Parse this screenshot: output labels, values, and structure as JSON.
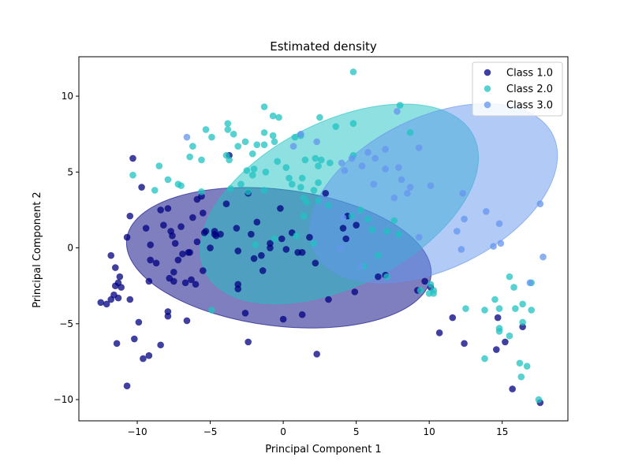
{
  "chart_data": {
    "type": "scatter",
    "title": "Estimated density",
    "xlabel": "Principal Component 1",
    "ylabel": "Principal Component 2",
    "xlim": [
      -14,
      19.5
    ],
    "ylim": [
      -11.4,
      12.6
    ],
    "x_ticks": [
      -10,
      -5,
      0,
      5,
      10,
      15
    ],
    "y_ticks": [
      -10,
      -5,
      0,
      5,
      10
    ],
    "x_tick_labels": [
      "−10",
      "−5",
      "0",
      "5",
      "10",
      "15"
    ],
    "y_tick_labels": [
      "−10",
      "−5",
      "0",
      "5",
      "10"
    ],
    "grid": false,
    "legend_position": "top-right",
    "series": [
      {
        "name": "Class 1.0",
        "color": "#000080",
        "ellipse": {
          "cx": -0.3,
          "cy": -0.65,
          "rx": 10.5,
          "ry": 4.5,
          "angle_deg": 7
        },
        "points": [
          [
            -10.3,
            5.9
          ],
          [
            -9.7,
            4.0
          ],
          [
            -10.5,
            2.1
          ],
          [
            -10.7,
            0.7
          ],
          [
            -11.8,
            -0.5
          ],
          [
            -11.5,
            -1.3
          ],
          [
            -11.2,
            -1.9
          ],
          [
            -11.3,
            -2.3
          ],
          [
            -11.5,
            -2.5
          ],
          [
            -11.1,
            -2.6
          ],
          [
            -11.6,
            -3.1
          ],
          [
            -11.8,
            -3.4
          ],
          [
            -11.3,
            -3.3
          ],
          [
            -12.1,
            -3.7
          ],
          [
            -12.5,
            -3.6
          ],
          [
            -10.5,
            -3.4
          ],
          [
            -11.4,
            -6.3
          ],
          [
            -10.2,
            -6.0
          ],
          [
            -9.9,
            -4.9
          ],
          [
            -10.7,
            -9.1
          ],
          [
            -9.6,
            -7.3
          ],
          [
            -9.2,
            -7.1
          ],
          [
            -8.4,
            -6.4
          ],
          [
            -9.4,
            1.3
          ],
          [
            -9.1,
            0.2
          ],
          [
            -9.1,
            -0.8
          ],
          [
            -9.2,
            -2.2
          ],
          [
            -8.4,
            2.5
          ],
          [
            -8.2,
            1.5
          ],
          [
            -7.9,
            2.6
          ],
          [
            -7.7,
            1.1
          ],
          [
            -7.6,
            0.8
          ],
          [
            -7.4,
            0.3
          ],
          [
            -7.2,
            -0.8
          ],
          [
            -7.8,
            -2.0
          ],
          [
            -7.5,
            -1.6
          ],
          [
            -7.5,
            -2.2
          ],
          [
            -8.7,
            -1.0
          ],
          [
            -7.9,
            -4.2
          ],
          [
            -7.9,
            -4.5
          ],
          [
            -7.0,
            1.4
          ],
          [
            -6.9,
            -0.4
          ],
          [
            -6.5,
            -0.3
          ],
          [
            -6.4,
            -0.3
          ],
          [
            -6.7,
            -2.3
          ],
          [
            -6.3,
            -2.1
          ],
          [
            -6.6,
            -4.8
          ],
          [
            -6.2,
            2.0
          ],
          [
            -5.9,
            3.2
          ],
          [
            -5.6,
            3.4
          ],
          [
            -5.5,
            2.3
          ],
          [
            -5.9,
            0.4
          ],
          [
            -5.3,
            1.1
          ],
          [
            -5.0,
            0.0
          ],
          [
            -5.5,
            -1.5
          ],
          [
            -6.0,
            -2.4
          ],
          [
            -5.4,
            1.0
          ],
          [
            -4.7,
            1.1
          ],
          [
            -4.6,
            0.8
          ],
          [
            -4.7,
            0.9
          ],
          [
            -4.3,
            0.9
          ],
          [
            -3.9,
            2.9
          ],
          [
            -3.2,
            1.3
          ],
          [
            -3.1,
            -0.2
          ],
          [
            -3.1,
            -2.4
          ],
          [
            -3.1,
            -2.7
          ],
          [
            -2.6,
            -4.3
          ],
          [
            -2.4,
            -6.2
          ],
          [
            -2.4,
            3.6
          ],
          [
            -2.2,
            0.9
          ],
          [
            -2.0,
            -0.7
          ],
          [
            -1.8,
            1.7
          ],
          [
            -1.5,
            -0.5
          ],
          [
            -1.4,
            -1.5
          ],
          [
            -0.9,
            0.0
          ],
          [
            -0.9,
            0.3
          ],
          [
            -0.2,
            2.6
          ],
          [
            -0.1,
            0.6
          ],
          [
            0.2,
            -0.1
          ],
          [
            -0.0,
            -4.7
          ],
          [
            0.6,
            1.0
          ],
          [
            1.0,
            -0.3
          ],
          [
            1.3,
            -0.3
          ],
          [
            1.3,
            -4.4
          ],
          [
            1.8,
            0.7
          ],
          [
            2.2,
            -1.0
          ],
          [
            2.3,
            -7.0
          ],
          [
            3.1,
            -3.4
          ],
          [
            4.1,
            1.3
          ],
          [
            4.3,
            0.6
          ],
          [
            4.4,
            2.1
          ],
          [
            5.0,
            1.5
          ],
          [
            4.9,
            -2.9
          ],
          [
            6.5,
            -1.9
          ],
          [
            7.0,
            -1.8
          ],
          [
            9.2,
            -2.8
          ],
          [
            9.7,
            -2.2
          ],
          [
            10.1,
            -2.6
          ],
          [
            10.7,
            -5.6
          ],
          [
            11.6,
            -4.6
          ],
          [
            12.4,
            -6.3
          ],
          [
            14.7,
            -4.6
          ],
          [
            14.6,
            -6.7
          ],
          [
            15.2,
            -6.2
          ],
          [
            15.7,
            -9.3
          ],
          [
            16.4,
            -5.2
          ],
          [
            17.6,
            -10.2
          ],
          [
            -3.7,
            6.1
          ],
          [
            2.9,
            3.6
          ]
        ]
      },
      {
        "name": "Class 2.0",
        "color": "#20c2c2",
        "ellipse": {
          "cx": 3.85,
          "cy": 2.9,
          "rx": 10.3,
          "ry": 5.4,
          "angle_deg": -27
        },
        "points": [
          [
            4.8,
            11.6
          ],
          [
            -1.3,
            9.3
          ],
          [
            -0.7,
            8.7
          ],
          [
            -0.3,
            8.6
          ],
          [
            2.5,
            8.6
          ],
          [
            4.8,
            8.2
          ],
          [
            8.0,
            9.4
          ],
          [
            -3.8,
            8.2
          ],
          [
            -3.8,
            7.8
          ],
          [
            -3.4,
            7.5
          ],
          [
            -5.3,
            7.8
          ],
          [
            -4.9,
            7.3
          ],
          [
            -1.3,
            7.6
          ],
          [
            -0.7,
            7.4
          ],
          [
            -0.6,
            7.0
          ],
          [
            0.8,
            7.3
          ],
          [
            1.2,
            7.4
          ],
          [
            3.6,
            8.0
          ],
          [
            -2.6,
            7.0
          ],
          [
            -3.1,
            6.7
          ],
          [
            -2.1,
            6.2
          ],
          [
            -1.8,
            6.8
          ],
          [
            -1.3,
            6.8
          ],
          [
            -6.2,
            6.7
          ],
          [
            -6.4,
            6.0
          ],
          [
            -5.6,
            5.8
          ],
          [
            -3.9,
            6.1
          ],
          [
            -3.7,
            5.8
          ],
          [
            -2.5,
            5.1
          ],
          [
            -2.0,
            5.2
          ],
          [
            -2.1,
            4.8
          ],
          [
            -1.2,
            5.0
          ],
          [
            -0.4,
            5.7
          ],
          [
            0.2,
            5.3
          ],
          [
            0.4,
            4.6
          ],
          [
            1.3,
            4.6
          ],
          [
            1.5,
            5.8
          ],
          [
            2.2,
            5.9
          ],
          [
            2.4,
            5.4
          ],
          [
            2.6,
            5.8
          ],
          [
            3.2,
            5.6
          ],
          [
            -8.5,
            5.4
          ],
          [
            -10.3,
            4.8
          ],
          [
            -7.9,
            4.5
          ],
          [
            -7.0,
            4.1
          ],
          [
            -7.2,
            4.2
          ],
          [
            -8.8,
            3.8
          ],
          [
            -5.6,
            3.7
          ],
          [
            -3.6,
            3.9
          ],
          [
            -2.9,
            4.2
          ],
          [
            -2.4,
            3.7
          ],
          [
            -1.3,
            3.8
          ],
          [
            0.6,
            4.2
          ],
          [
            1.2,
            4.0
          ],
          [
            1.4,
            3.3
          ],
          [
            1.6,
            3.0
          ],
          [
            2.1,
            3.8
          ],
          [
            2.4,
            4.3
          ],
          [
            2.4,
            3.1
          ],
          [
            3.1,
            2.8
          ],
          [
            4.7,
            2.1
          ],
          [
            5.3,
            2.5
          ],
          [
            5.8,
            1.9
          ],
          [
            6.1,
            1.2
          ],
          [
            7.1,
            1.1
          ],
          [
            7.6,
            1.8
          ],
          [
            7.9,
            0.9
          ],
          [
            6.5,
            -0.5
          ],
          [
            5.5,
            -1.2
          ],
          [
            7.1,
            -1.9
          ],
          [
            1.4,
            2.1
          ],
          [
            -0.6,
            0.6
          ],
          [
            0.9,
            0.8
          ],
          [
            2.1,
            0.3
          ],
          [
            -1.9,
            0.2
          ],
          [
            -4.9,
            -4.1
          ],
          [
            9.4,
            -2.8
          ],
          [
            10.3,
            -2.8
          ],
          [
            10.3,
            -3.0
          ],
          [
            10.1,
            -2.4
          ],
          [
            10.0,
            -3.0
          ],
          [
            12.5,
            -4.0
          ],
          [
            13.8,
            -4.1
          ],
          [
            14.5,
            -3.4
          ],
          [
            14.8,
            -4.0
          ],
          [
            14.8,
            -5.3
          ],
          [
            14.8,
            -5.5
          ],
          [
            15.5,
            -5.8
          ],
          [
            15.5,
            -1.9
          ],
          [
            15.8,
            -2.6
          ],
          [
            15.9,
            -4.0
          ],
          [
            16.4,
            -3.7
          ],
          [
            16.4,
            -4.9
          ],
          [
            16.2,
            -7.6
          ],
          [
            16.3,
            -8.5
          ],
          [
            16.7,
            -7.8
          ],
          [
            17.0,
            -4.1
          ],
          [
            17.5,
            -10.0
          ],
          [
            17.0,
            -2.3
          ],
          [
            13.8,
            -7.3
          ],
          [
            4.8,
            6.1
          ],
          [
            8.7,
            7.6
          ]
        ]
      },
      {
        "name": "Class 3.0",
        "color": "#6495ed",
        "ellipse": {
          "cx": 10.3,
          "cy": 3.6,
          "rx": 9.1,
          "ry": 5.0,
          "angle_deg": -26
        },
        "points": [
          [
            7.8,
            9.0
          ],
          [
            0.7,
            6.7
          ],
          [
            1.2,
            7.5
          ],
          [
            2.3,
            7.0
          ],
          [
            5.8,
            6.3
          ],
          [
            6.3,
            5.9
          ],
          [
            4.7,
            5.9
          ],
          [
            7.0,
            6.5
          ],
          [
            9.3,
            6.6
          ],
          [
            5.4,
            5.4
          ],
          [
            4.2,
            5.1
          ],
          [
            4.0,
            5.6
          ],
          [
            7.0,
            5.2
          ],
          [
            7.9,
            5.3
          ],
          [
            8.1,
            4.5
          ],
          [
            8.5,
            3.6
          ],
          [
            6.2,
            4.2
          ],
          [
            7.6,
            3.3
          ],
          [
            8.7,
            4.0
          ],
          [
            10.1,
            4.1
          ],
          [
            12.3,
            3.6
          ],
          [
            13.9,
            2.4
          ],
          [
            12.4,
            1.9
          ],
          [
            14.8,
            1.6
          ],
          [
            9.3,
            0.7
          ],
          [
            11.9,
            1.1
          ],
          [
            12.2,
            -0.1
          ],
          [
            14.4,
            0.1
          ],
          [
            14.9,
            0.3
          ],
          [
            17.8,
            -0.6
          ],
          [
            17.6,
            2.9
          ],
          [
            16.9,
            -2.3
          ],
          [
            4.1,
            2.0
          ],
          [
            3.9,
            0.0
          ],
          [
            5.3,
            -1.2
          ],
          [
            -6.6,
            7.3
          ]
        ]
      }
    ]
  }
}
